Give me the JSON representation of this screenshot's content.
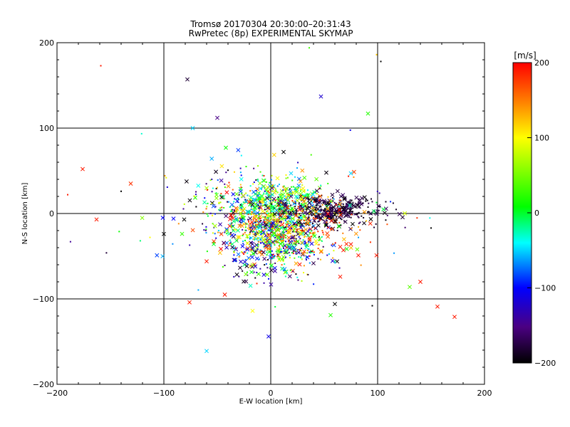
{
  "chart_data": {
    "type": "scatter",
    "title": "Tromsø 20170304 20:30:00–20:31:43",
    "subtitle": "RwPretec (8p) EXPERIMENTAL SKYMAP",
    "xlabel": "E-W location [km]",
    "ylabel": "N-S location [km]",
    "xlim": [
      -200,
      200
    ],
    "ylim": [
      -200,
      200
    ],
    "x_ticks": [
      -200,
      -100,
      0,
      100,
      200
    ],
    "y_ticks": [
      -200,
      -100,
      0,
      100,
      200
    ],
    "x_tick_labels": [
      "−200",
      "−100",
      "0",
      "100",
      "200"
    ],
    "y_tick_labels": [
      "−200",
      "−100",
      "0",
      "100",
      "200"
    ],
    "grid": true,
    "colorbar": {
      "label": "[m/s]",
      "range": [
        -200,
        200
      ],
      "ticks": [
        -200,
        -100,
        0,
        100,
        200
      ],
      "tick_labels": [
        "−200",
        "−100",
        "0",
        "100",
        "200"
      ],
      "colors": [
        "#000000",
        "#4b0082",
        "#0000ff",
        "#00ffff",
        "#00ff00",
        "#ffff00",
        "#ff8000",
        "#ff0000"
      ]
    },
    "marker_types": [
      "x",
      "dot"
    ],
    "notable_points": [
      {
        "x": -78,
        "y": 157,
        "v": -180,
        "m": "x"
      },
      {
        "x": -50,
        "y": 112,
        "v": -150,
        "m": "x"
      },
      {
        "x": -73,
        "y": 100,
        "v": -50,
        "m": "x"
      },
      {
        "x": -42,
        "y": 77,
        "v": 10,
        "m": "x"
      },
      {
        "x": 47,
        "y": 137,
        "v": -120,
        "m": "x"
      },
      {
        "x": 91,
        "y": 117,
        "v": 20,
        "m": "x"
      },
      {
        "x": 36,
        "y": 194,
        "v": 30,
        "m": "dot"
      },
      {
        "x": 103,
        "y": 178,
        "v": -200,
        "m": "dot"
      },
      {
        "x": -159,
        "y": 173,
        "v": 190,
        "m": "dot"
      },
      {
        "x": 99,
        "y": 186,
        "v": 120,
        "m": "dot"
      },
      {
        "x": -176,
        "y": 52,
        "v": 190,
        "m": "x"
      },
      {
        "x": -131,
        "y": 35,
        "v": 180,
        "m": "x"
      },
      {
        "x": -163,
        "y": -7,
        "v": 190,
        "m": "x"
      },
      {
        "x": -190,
        "y": 22,
        "v": 190,
        "m": "dot"
      },
      {
        "x": -140,
        "y": 26,
        "v": -200,
        "m": "dot"
      },
      {
        "x": -113,
        "y": -28,
        "v": 100,
        "m": "dot"
      },
      {
        "x": -60,
        "y": -56,
        "v": 190,
        "m": "x"
      },
      {
        "x": -76,
        "y": -104,
        "v": 190,
        "m": "x"
      },
      {
        "x": -43,
        "y": -95,
        "v": 190,
        "m": "x"
      },
      {
        "x": -17,
        "y": -114,
        "v": 100,
        "m": "x"
      },
      {
        "x": -60,
        "y": -161,
        "v": -50,
        "m": "x"
      },
      {
        "x": -2,
        "y": -144,
        "v": -110,
        "m": "x"
      },
      {
        "x": 56,
        "y": -119,
        "v": 20,
        "m": "x"
      },
      {
        "x": 60,
        "y": -106,
        "v": -200,
        "m": "x"
      },
      {
        "x": 130,
        "y": -86,
        "v": 40,
        "m": "x"
      },
      {
        "x": 140,
        "y": -80,
        "v": 190,
        "m": "x"
      },
      {
        "x": 156,
        "y": -109,
        "v": 190,
        "m": "x"
      },
      {
        "x": 172,
        "y": -121,
        "v": 190,
        "m": "x"
      },
      {
        "x": 150,
        "y": -17,
        "v": -200,
        "m": "dot"
      },
      {
        "x": 95,
        "y": -108,
        "v": -200,
        "m": "dot"
      },
      {
        "x": 99,
        "y": -49,
        "v": 190,
        "m": "x"
      },
      {
        "x": 65,
        "y": -39,
        "v": 190,
        "m": "x"
      },
      {
        "x": 75,
        "y": -36,
        "v": 190,
        "m": "x"
      },
      {
        "x": 68,
        "y": -43,
        "v": 190,
        "m": "x"
      },
      {
        "x": 82,
        "y": -49,
        "v": 190,
        "m": "x"
      },
      {
        "x": 65,
        "y": -74,
        "v": 190,
        "m": "x"
      },
      {
        "x": 12,
        "y": 72,
        "v": -200,
        "m": "x"
      },
      {
        "x": 19,
        "y": 47,
        "v": -50,
        "m": "x"
      },
      {
        "x": 75,
        "y": 47,
        "v": -50,
        "m": "x"
      },
      {
        "x": -100,
        "y": -24,
        "v": -200,
        "m": "x"
      },
      {
        "x": -91,
        "y": -6,
        "v": -100,
        "m": "x"
      },
      {
        "x": -101,
        "y": -5,
        "v": -100,
        "m": "x"
      },
      {
        "x": -81,
        "y": -7,
        "v": -200,
        "m": "x"
      }
    ],
    "clusters": [
      {
        "cx": 5,
        "cy": -25,
        "sx": 22,
        "sy": 18,
        "n": 550,
        "vmin": -200,
        "vmax": 200
      },
      {
        "cx": 10,
        "cy": 15,
        "sx": 18,
        "sy": 15,
        "n": 320,
        "vmin": -80,
        "vmax": 120
      },
      {
        "cx": 55,
        "cy": 3,
        "sx": 25,
        "sy": 9,
        "n": 380,
        "vmin": -200,
        "vmax": -160
      },
      {
        "cx": 30,
        "cy": -12,
        "sx": 30,
        "sy": 20,
        "n": 160,
        "vmin": 120,
        "vmax": 200
      },
      {
        "cx": -30,
        "cy": 5,
        "sx": 22,
        "sy": 20,
        "n": 230,
        "vmin": -200,
        "vmax": 200
      },
      {
        "cx": 0,
        "cy": -55,
        "sx": 25,
        "sy": 15,
        "n": 120,
        "vmin": -200,
        "vmax": 60
      },
      {
        "cx": 0,
        "cy": 5,
        "sx": 60,
        "sy": 40,
        "n": 120,
        "vmin": -200,
        "vmax": 200
      }
    ]
  }
}
